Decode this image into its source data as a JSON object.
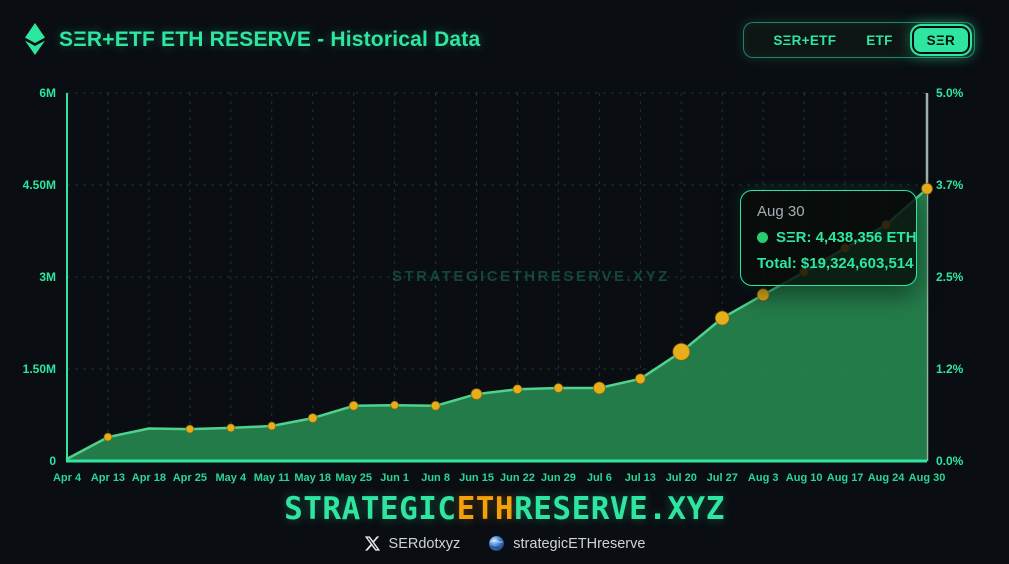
{
  "header": {
    "title": "SΞR+ETF ETH RESERVE - Historical Data",
    "logo_icon": "ethereum-diamond-icon",
    "toggle": {
      "options": [
        "SΞR+ETF",
        "ETF",
        "SΞR"
      ],
      "selected": "SΞR"
    }
  },
  "chart_data": {
    "type": "area",
    "title": "SΞR+ETF ETH RESERVE - Historical Data",
    "watermark": "STRATEGICETHRESERVE.XYZ",
    "categories": [
      "Apr 4",
      "Apr 13",
      "Apr 18",
      "Apr 25",
      "May 4",
      "May 11",
      "May 18",
      "May 25",
      "Jun 1",
      "Jun 8",
      "Jun 15",
      "Jun 22",
      "Jun 29",
      "Jul 6",
      "Jul 13",
      "Jul 20",
      "Jul 27",
      "Aug 3",
      "Aug 10",
      "Aug 17",
      "Aug 24",
      "Aug 30"
    ],
    "series": [
      {
        "name": "SΞR",
        "unit": "ETH",
        "values": [
          35000,
          390000,
          530000,
          520000,
          540000,
          570000,
          700000,
          900000,
          910000,
          900000,
          1090000,
          1170000,
          1190000,
          1190000,
          1340000,
          1780000,
          2330000,
          2710000,
          3080000,
          3470000,
          3850000,
          4438356
        ],
        "point_radii": [
          0,
          4,
          0,
          4,
          4,
          4,
          4.5,
          4.5,
          4,
          4.5,
          5.5,
          4.5,
          4.5,
          6,
          5,
          8.5,
          7,
          6,
          4.5,
          4.5,
          4.5,
          5.5
        ]
      }
    ],
    "left_axis": {
      "ticks": [
        "0",
        "1.50M",
        "3M",
        "4.50M",
        "6M"
      ],
      "tick_values": [
        0,
        1500000,
        3000000,
        4500000,
        6000000
      ],
      "min": 0,
      "max": 6000000
    },
    "right_axis": {
      "ticks": [
        "0.0%",
        "1.2%",
        "2.5%",
        "3.7%",
        "5.0%"
      ],
      "min": 0,
      "max": 5
    },
    "grid": "dashed",
    "legend": "none",
    "colors": {
      "accent": "#2ee6a0",
      "area_fill": "#26824d",
      "line": "#4fd28e",
      "dot": "#e6ae1a",
      "dot_edge": "rgba(120,85,10,0.6)",
      "grid": "rgba(62,148,118,0.30)",
      "right_axis_line": "rgba(205,232,220,0.75)"
    }
  },
  "tooltip": {
    "date": "Aug 30",
    "value_line": "SΞR: 4,438,356 ETH",
    "total_line": "Total: $19,324,603,514"
  },
  "brand": {
    "segments": [
      {
        "text": "STRATEGIC",
        "color": "#2ee6a0"
      },
      {
        "text": "ETH",
        "color": "#f59f0a"
      },
      {
        "text": "RESERVE.XYZ",
        "color": "#2ee6a0"
      }
    ]
  },
  "footer": {
    "twitter_handle": "SERdotxyz",
    "site_handle": "strategicETHreserve"
  }
}
